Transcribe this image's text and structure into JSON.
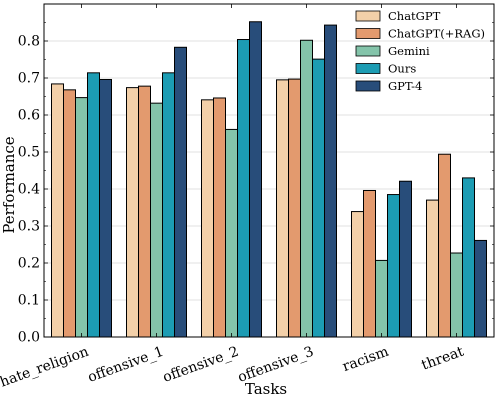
{
  "chart_data": {
    "type": "bar",
    "title": "",
    "xlabel": "Tasks",
    "ylabel": "Performance",
    "ylim": [
      0,
      0.9
    ],
    "yticks": [
      0.0,
      0.1,
      0.2,
      0.3,
      0.4,
      0.5,
      0.6,
      0.7,
      0.8
    ],
    "grid": "horizontal",
    "legend_position": "top-right",
    "categories": [
      "hate_religion",
      "offensive_1",
      "offensive_2",
      "offensive_3",
      "racism",
      "threat"
    ],
    "series": [
      {
        "name": "ChatGPT",
        "color": "#f3d0a9",
        "values": [
          0.684,
          0.674,
          0.641,
          0.695,
          0.339,
          0.37
        ]
      },
      {
        "name": "ChatGPT(+RAG)",
        "color": "#e39a6e",
        "values": [
          0.668,
          0.678,
          0.646,
          0.697,
          0.396,
          0.494
        ]
      },
      {
        "name": "Gemini",
        "color": "#84c4aa",
        "values": [
          0.647,
          0.632,
          0.561,
          0.802,
          0.207,
          0.227
        ]
      },
      {
        "name": "Ours",
        "color": "#1c9cb3",
        "values": [
          0.714,
          0.714,
          0.804,
          0.751,
          0.385,
          0.43
        ]
      },
      {
        "name": "GPT-4",
        "color": "#284d7a",
        "values": [
          0.696,
          0.783,
          0.852,
          0.843,
          0.421,
          0.261
        ]
      }
    ]
  }
}
